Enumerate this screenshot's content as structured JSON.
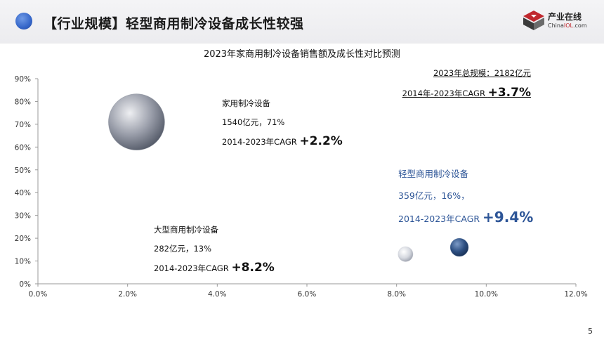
{
  "header": {
    "title": "【行业规模】轻型商用制冷设备成长性较强",
    "logo_cn": "产业在线",
    "logo_en_prefix": "China",
    "logo_en_highlight": "IOL",
    "logo_en_suffix": ".com"
  },
  "page_number": "5",
  "notes": {
    "total": "2023年总规模：2182亿元",
    "overall_cagr_prefix": "2014年-2023年CAGR ",
    "overall_cagr_value": "+3.7%"
  },
  "annotations": {
    "household": {
      "name": "家用制冷设备",
      "detail": "1540亿元，71%",
      "cagr_prefix": "2014-2023年CAGR ",
      "cagr_value": "+2.2%"
    },
    "light": {
      "name": "轻型商用制冷设备",
      "detail": "359亿元，16%，",
      "cagr_prefix": "2014-2023年CAGR ",
      "cagr_value": "+9.4%"
    },
    "large": {
      "name": "大型商用制冷设备",
      "detail": "282亿元，13%",
      "cagr_prefix": "2014-2023年CAGR ",
      "cagr_value": "+8.2%"
    }
  },
  "chart_data": {
    "type": "scatter",
    "title": "2023年家商用制冷设备销售额及成长性对比预测",
    "xlabel": "",
    "ylabel": "",
    "xlim": [
      0,
      12
    ],
    "ylim": [
      0,
      90
    ],
    "x_ticks": [
      "0.0%",
      "2.0%",
      "4.0%",
      "6.0%",
      "8.0%",
      "10.0%",
      "12.0%"
    ],
    "y_ticks": [
      "0%",
      "10%",
      "20%",
      "30%",
      "40%",
      "50%",
      "60%",
      "70%",
      "80%",
      "90%"
    ],
    "grid": false,
    "series": [
      {
        "x": 2.2,
        "y": 71,
        "size": 1540,
        "color": "#7d8290"
      },
      {
        "x": 9.4,
        "y": 16,
        "size": 359,
        "color": "#2d4f82"
      },
      {
        "x": 8.2,
        "y": 13,
        "size": 282,
        "color": "#c9ccd4"
      }
    ]
  }
}
